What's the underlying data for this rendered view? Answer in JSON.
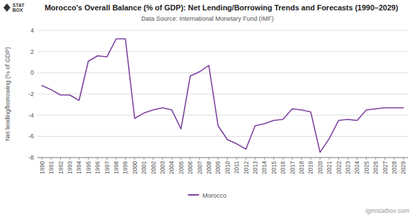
{
  "chart_data": {
    "type": "line",
    "title": "Morocco's Overall Balance (% of GDP): Net Lending/Borrowing Trends and Forecasts (1990–2029)",
    "subtitle": "Data Source: International Monetary Fund (IMF)",
    "y_label": "Net lending/borrowing (% of GDP)",
    "x": [
      1990,
      1991,
      1992,
      1993,
      1994,
      1995,
      1996,
      1997,
      1998,
      1999,
      2000,
      2001,
      2002,
      2003,
      2004,
      2005,
      2006,
      2007,
      2008,
      2009,
      2010,
      2011,
      2012,
      2013,
      2014,
      2015,
      2016,
      2017,
      2018,
      2019,
      2020,
      2021,
      2022,
      2023,
      2024,
      2025,
      2026,
      2027,
      2028,
      2029
    ],
    "series": [
      {
        "name": "Morocco",
        "color": "#7b3f9e",
        "values": [
          -1.2,
          -1.6,
          -2.1,
          -2.1,
          -2.6,
          1.1,
          1.6,
          1.5,
          3.2,
          3.2,
          -4.3,
          -3.8,
          -3.5,
          -3.3,
          -3.5,
          -5.3,
          -0.3,
          0.1,
          0.7,
          -5.0,
          -6.3,
          -6.7,
          -7.2,
          -5.0,
          -4.8,
          -4.5,
          -4.4,
          -3.4,
          -3.5,
          -3.7,
          -7.5,
          -6.2,
          -4.5,
          -4.4,
          -4.5,
          -3.5,
          -3.4,
          -3.3,
          -3.3,
          -3.3
        ]
      }
    ],
    "xlim": [
      1989.5,
      2029.5
    ],
    "xticks": [
      1990,
      1991,
      1992,
      1993,
      1994,
      1995,
      1996,
      1997,
      1998,
      1999,
      2000,
      2001,
      2002,
      2003,
      2004,
      2005,
      2006,
      2007,
      2008,
      2009,
      2010,
      2011,
      2012,
      2013,
      2014,
      2015,
      2016,
      2017,
      2018,
      2019,
      2020,
      2021,
      2022,
      2023,
      2024,
      2025,
      2026,
      2027,
      2028,
      2029
    ],
    "ylim": [
      -8,
      4
    ],
    "yticks": [
      -8,
      -6,
      -4,
      -2,
      0,
      2,
      4
    ],
    "grid": true,
    "legend": "bottom",
    "annotations": [
      "tgmstatbox.com",
      "STAT\nBOX"
    ]
  }
}
